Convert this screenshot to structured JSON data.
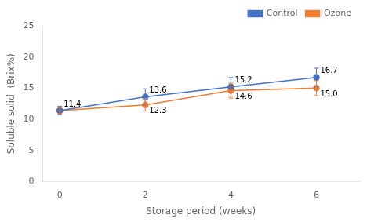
{
  "chart_data": {
    "type": "line",
    "x": [
      0,
      2,
      4,
      6
    ],
    "series": [
      {
        "name": "Control",
        "color": "#4472C4",
        "marker": "circle",
        "line_style": "solid",
        "values": [
          11.4,
          13.6,
          15.2,
          16.7
        ],
        "errors": [
          0.7,
          1.3,
          1.5,
          1.5
        ],
        "value_labels": [
          "11.4",
          "13.6",
          "15.2",
          "16.7"
        ]
      },
      {
        "name": "Ozone",
        "color": "#ED7D31",
        "marker": "circle",
        "line_style": "solid",
        "values": [
          11.4,
          12.3,
          14.6,
          15.0
        ],
        "errors": [
          0.6,
          1.0,
          1.2,
          1.2
        ],
        "value_labels": [
          null,
          "12.3",
          "14.6",
          "15.0"
        ]
      }
    ],
    "xlabel": "Storage period (weeks)",
    "ylabel": "Soluble solid  (Brix%)",
    "xlim": [
      -0.4,
      7.0
    ],
    "xticks": [
      0,
      2,
      4,
      6
    ],
    "ylim": [
      0,
      25
    ],
    "yticks": [
      0,
      5,
      10,
      15,
      20,
      25
    ],
    "grid": false,
    "legend": "top",
    "data_labels": true
  }
}
